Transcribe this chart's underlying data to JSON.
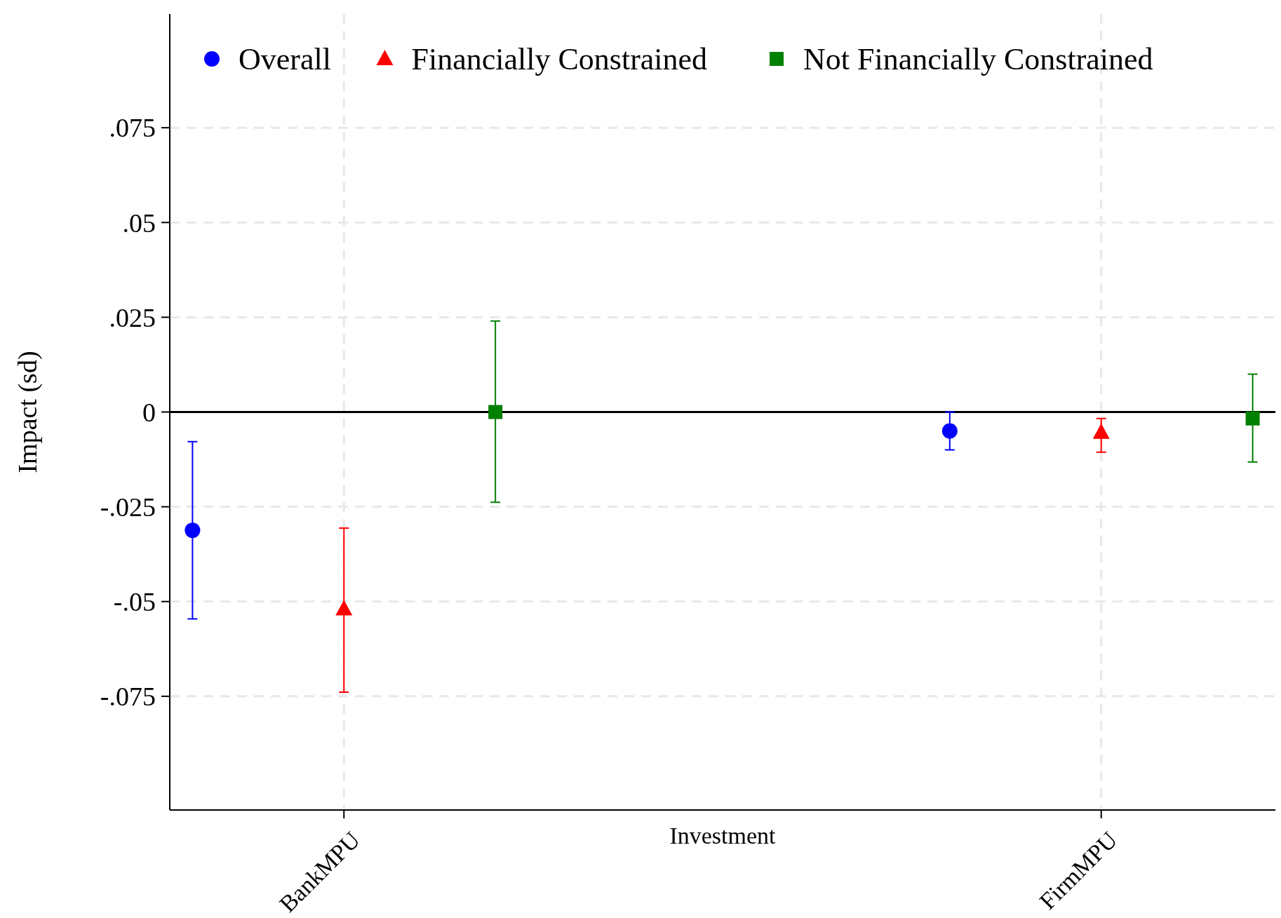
{
  "chart_data": {
    "type": "scatter",
    "xlabel": "Investment",
    "ylabel": "Impact (sd)",
    "categories": [
      null,
      "BankMPU",
      null,
      null,
      null,
      null,
      "FirmMPU",
      null
    ],
    "ylim": [
      -0.105,
      0.105
    ],
    "yticks": [
      {
        "value": -0.075,
        "label": "-.075"
      },
      {
        "value": -0.05,
        "label": "-.05"
      },
      {
        "value": -0.025,
        "label": "-.025"
      },
      0,
      {
        "value": 0.025,
        "label": ".025"
      },
      {
        "value": 0.05,
        "label": ".05"
      },
      {
        "value": 0.075,
        "label": ".075"
      }
    ],
    "grid": true,
    "legend": "top",
    "line_style": "dashed",
    "ref_lines": [
      {
        "axis": "y",
        "value": 0,
        "color": "#000000",
        "line_style": "solid"
      }
    ],
    "series": [
      {
        "name": "Overall",
        "color": "#0000ff",
        "marker": "circle",
        "values": [
          -0.0312,
          null,
          null,
          null,
          null,
          -0.005,
          null,
          null
        ],
        "errors": [
          [
            -0.0546,
            -0.0078
          ],
          null,
          null,
          null,
          null,
          [
            -0.01,
            0
          ],
          null,
          null
        ]
      },
      {
        "name": "Financially Constrained",
        "color": "#ff0000",
        "marker": "triangle",
        "values": [
          null,
          -0.052,
          null,
          null,
          null,
          null,
          -0.0054,
          null
        ],
        "errors": [
          null,
          [
            -0.0739,
            -0.0306
          ],
          null,
          null,
          null,
          null,
          [
            -0.0106,
            -0.0017
          ],
          null
        ]
      },
      {
        "name": "Not Financially Constrained",
        "color": "#008000",
        "marker": "square",
        "values": [
          null,
          null,
          0,
          null,
          null,
          null,
          null,
          -0.0017
        ],
        "errors": [
          null,
          null,
          [
            -0.0238,
            0.024
          ],
          null,
          null,
          null,
          null,
          [
            -0.0132,
            0.01
          ]
        ]
      }
    ]
  }
}
